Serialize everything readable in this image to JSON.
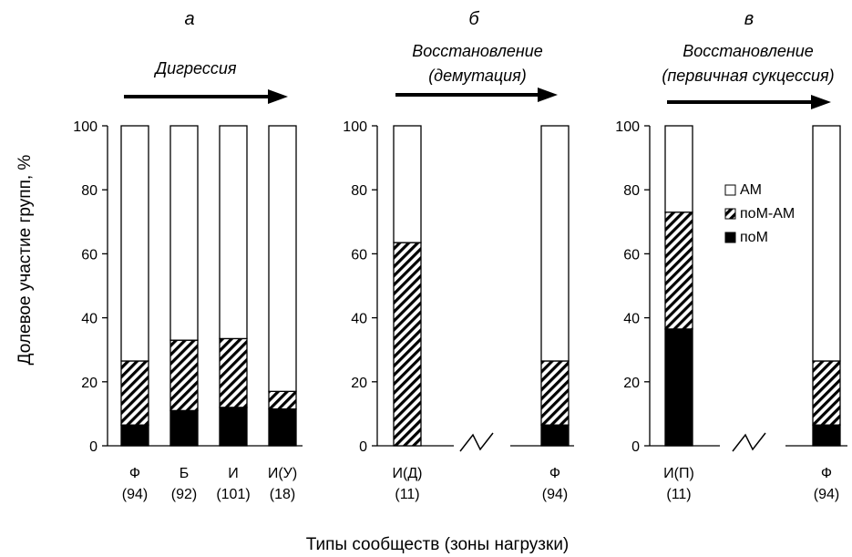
{
  "ylabel": "Долевое участие групп, %",
  "xlabel": "Типы сообществ (зоны нагрузки)",
  "legend": {
    "items": [
      {
        "label": "АМ",
        "pattern": "white"
      },
      {
        "label": "поМ-АМ",
        "pattern": "hatch"
      },
      {
        "label": "поМ",
        "pattern": "black"
      }
    ]
  },
  "chart_data": [
    {
      "type": "bar",
      "stacked": true,
      "panel_letter": "а",
      "arrow_text": [
        "Дигрессия"
      ],
      "ylim": [
        0,
        100
      ],
      "yticks": [
        0,
        20,
        40,
        60,
        80,
        100
      ],
      "categories": [
        {
          "name": "Ф",
          "n": "(94)"
        },
        {
          "name": "Б",
          "n": "(92)"
        },
        {
          "name": "И",
          "n": "(101)"
        },
        {
          "name": "И(У)",
          "n": "(18)"
        }
      ],
      "series": [
        {
          "name": "поМ",
          "values": [
            6.5,
            11,
            12,
            11.5
          ]
        },
        {
          "name": "поМ-АМ",
          "values": [
            20,
            22,
            21.5,
            5.5
          ]
        },
        {
          "name": "АМ",
          "values": [
            73.5,
            67,
            66.5,
            83
          ]
        }
      ]
    },
    {
      "type": "bar",
      "stacked": true,
      "panel_letter": "б",
      "arrow_text": [
        "Восстановление",
        "(демутация)"
      ],
      "ylim": [
        0,
        100
      ],
      "yticks": [
        0,
        20,
        40,
        60,
        80,
        100
      ],
      "axis_break": true,
      "categories": [
        {
          "name": "И(Д)",
          "n": "(11)"
        },
        {
          "name": "Ф",
          "n": "(94)"
        }
      ],
      "series": [
        {
          "name": "поМ",
          "values": [
            0,
            6.5
          ]
        },
        {
          "name": "поМ-АМ",
          "values": [
            63.5,
            20
          ]
        },
        {
          "name": "АМ",
          "values": [
            36.5,
            73.5
          ]
        }
      ]
    },
    {
      "type": "bar",
      "stacked": true,
      "panel_letter": "в",
      "arrow_text": [
        "Восстановление",
        "(первичная сукцессия)"
      ],
      "ylim": [
        0,
        100
      ],
      "yticks": [
        0,
        20,
        40,
        60,
        80,
        100
      ],
      "axis_break": true,
      "legend_position": "top-right",
      "categories": [
        {
          "name": "И(П)",
          "n": "(11)"
        },
        {
          "name": "Ф",
          "n": "(94)"
        }
      ],
      "series": [
        {
          "name": "поМ",
          "values": [
            36.5,
            6.5
          ]
        },
        {
          "name": "поМ-АМ",
          "values": [
            36.5,
            20
          ]
        },
        {
          "name": "АМ",
          "values": [
            27,
            73.5
          ]
        }
      ]
    }
  ]
}
